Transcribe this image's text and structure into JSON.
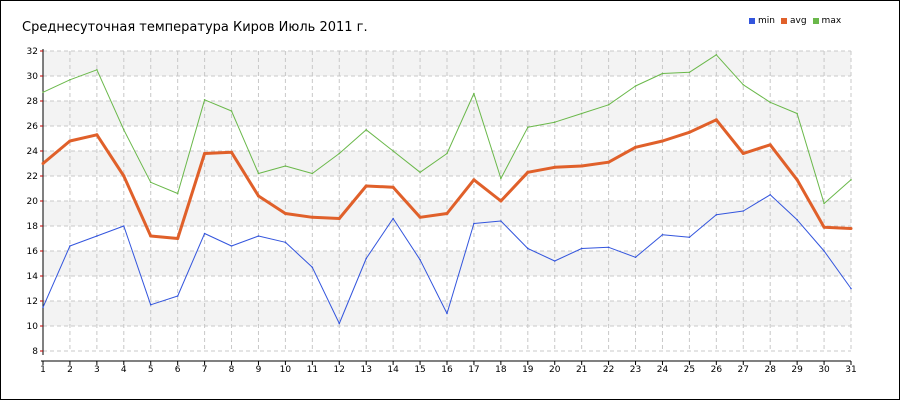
{
  "chart_data": {
    "type": "line",
    "title": "Среднесуточная температура Киров  Июль 2011 г.",
    "x": [
      1,
      2,
      3,
      4,
      5,
      6,
      7,
      8,
      9,
      10,
      11,
      12,
      13,
      14,
      15,
      16,
      17,
      18,
      19,
      20,
      21,
      22,
      23,
      24,
      25,
      26,
      27,
      28,
      29,
      30,
      31
    ],
    "xticks": [
      "1",
      "2",
      "3",
      "4",
      "5",
      "6",
      "7",
      "8",
      "9",
      "10",
      "11",
      "12",
      "13",
      "14",
      "15",
      "16",
      "17",
      "18",
      "19",
      "20",
      "21",
      "22",
      "23",
      "24",
      "25",
      "26",
      "27",
      "28",
      "29",
      "30",
      "31"
    ],
    "ylim": [
      8,
      32
    ],
    "yticks": [
      "8",
      "10",
      "12",
      "14",
      "16",
      "18",
      "20",
      "22",
      "24",
      "26",
      "28",
      "30",
      "32"
    ],
    "grid": true,
    "legend_position": "top-right",
    "series": [
      {
        "name": "min",
        "color": "#3355dd",
        "values": [
          11.5,
          16.4,
          17.2,
          18.0,
          11.7,
          12.4,
          17.4,
          16.4,
          17.2,
          16.7,
          14.7,
          10.2,
          15.4,
          18.6,
          15.3,
          11.0,
          18.2,
          18.4,
          16.2,
          15.2,
          16.2,
          16.3,
          15.5,
          17.3,
          17.1,
          18.9,
          19.2,
          20.5,
          18.5,
          16.0,
          13.0
        ]
      },
      {
        "name": "avg",
        "color": "#e0602a",
        "values": [
          23.0,
          24.8,
          25.3,
          22.0,
          17.2,
          17.0,
          23.8,
          23.9,
          20.4,
          19.0,
          18.7,
          18.6,
          21.2,
          21.1,
          18.7,
          19.0,
          21.7,
          20.0,
          22.3,
          22.7,
          22.8,
          23.1,
          24.3,
          24.8,
          25.5,
          26.5,
          23.8,
          24.5,
          21.7,
          17.9,
          17.8
        ]
      },
      {
        "name": "max",
        "color": "#6ab84a",
        "values": [
          28.7,
          29.7,
          30.5,
          25.7,
          21.5,
          20.6,
          28.1,
          27.2,
          22.2,
          22.8,
          22.2,
          23.8,
          25.7,
          24.0,
          22.3,
          23.8,
          28.6,
          21.8,
          25.9,
          26.3,
          27.0,
          27.7,
          29.2,
          30.2,
          30.3,
          31.7,
          29.3,
          27.9,
          27.0,
          19.8,
          21.7
        ]
      }
    ]
  }
}
